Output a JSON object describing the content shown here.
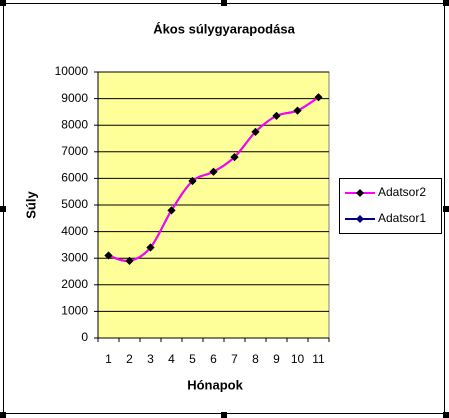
{
  "chart_data": {
    "type": "line",
    "title": "Ákos súlygyarapodása",
    "x_label": "Hónapok",
    "y_label": "Súly",
    "categories": [
      "1",
      "2",
      "3",
      "4",
      "5",
      "6",
      "7",
      "8",
      "9",
      "10",
      "11"
    ],
    "series": [
      {
        "name": "Adatsor2",
        "color": "#ff00ff",
        "marker_color": "#000000",
        "values": [
          3100,
          2900,
          3400,
          4800,
          5900,
          6250,
          6800,
          7750,
          8350,
          8550,
          9050
        ]
      },
      {
        "name": "Adatsor1",
        "color": "#000080",
        "marker_color": "#000080",
        "values": [
          3100,
          2900,
          3400,
          4800,
          5900,
          6250,
          6800,
          7750,
          8350,
          8550,
          9050
        ]
      }
    ],
    "ylim": [
      0,
      10000
    ],
    "yticks": [
      0,
      1000,
      2000,
      3000,
      4000,
      5000,
      6000,
      7000,
      8000,
      9000,
      10000
    ],
    "grid": true,
    "smooth": true,
    "legend": "right",
    "plot_background": "#ffff99"
  }
}
